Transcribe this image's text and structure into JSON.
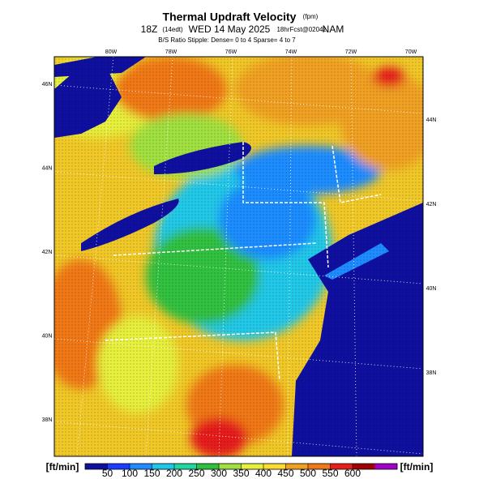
{
  "header": {
    "title": "Thermal Updraft Velocity",
    "title_units": "(fpm)",
    "valid_time": "18Z",
    "local_time": "(14edt)",
    "date": "WED 14 May 2025",
    "forecast": "18hrFcst@0204z",
    "model": "NAM",
    "stipple_note": "B/S Ratio Stipple: Dense= 0 to 4  Sparse= 4 to 7"
  },
  "map": {
    "longitude_labels": [
      "80W",
      "78W",
      "76W",
      "74W",
      "72W",
      "70W"
    ],
    "latitude_labels_left": [
      "46N",
      "44N",
      "42N",
      "40N",
      "38N"
    ],
    "latitude_labels_right": [
      "44N",
      "42N",
      "40N",
      "38N"
    ]
  },
  "colorbar": {
    "unit_label": "[ft/min]",
    "ticks": [
      50,
      100,
      150,
      200,
      250,
      300,
      350,
      400,
      450,
      500,
      550,
      600
    ],
    "colors": [
      "#1010a0",
      "#1e3cff",
      "#1e8cff",
      "#20c8e8",
      "#20d8a0",
      "#30c040",
      "#a0e040",
      "#e6f03c",
      "#fadc32",
      "#f0a020",
      "#f07818",
      "#e61e1e",
      "#a00000",
      "#a000c8"
    ]
  }
}
